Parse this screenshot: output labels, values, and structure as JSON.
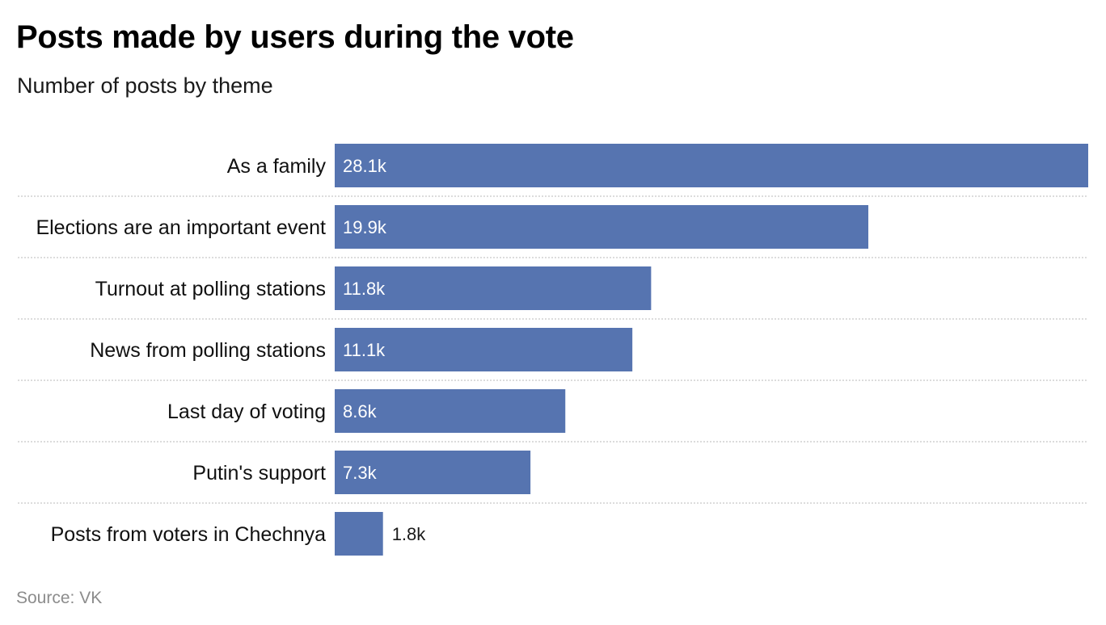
{
  "header": {
    "title": "Posts made by users during the vote",
    "subtitle": "Number of posts by theme"
  },
  "footer": {
    "source": "Source: VK"
  },
  "colors": {
    "bar": "#5674b0",
    "label_inside": "#ffffff",
    "label_outside": "#1a1a1a",
    "category_text": "#111111",
    "divider": "#c8c8c8"
  },
  "chart_data": {
    "type": "bar",
    "orientation": "horizontal",
    "title": "Posts made by users during the vote",
    "subtitle": "Number of posts by theme",
    "categories": [
      "As a family",
      "Elections are an important event",
      "Turnout at polling stations",
      "News from polling stations",
      "Last day of voting",
      "Putin's support",
      "Posts from voters in Chechnya"
    ],
    "values": [
      28.1,
      19.9,
      11.8,
      11.1,
      8.6,
      7.3,
      1.8
    ],
    "value_labels": [
      "28.1k",
      "19.9k",
      "11.8k",
      "11.1k",
      "8.6k",
      "7.3k",
      "1.8k"
    ],
    "unit": "k",
    "xlim": [
      0,
      28.1
    ],
    "grid": false,
    "legend": "none"
  }
}
